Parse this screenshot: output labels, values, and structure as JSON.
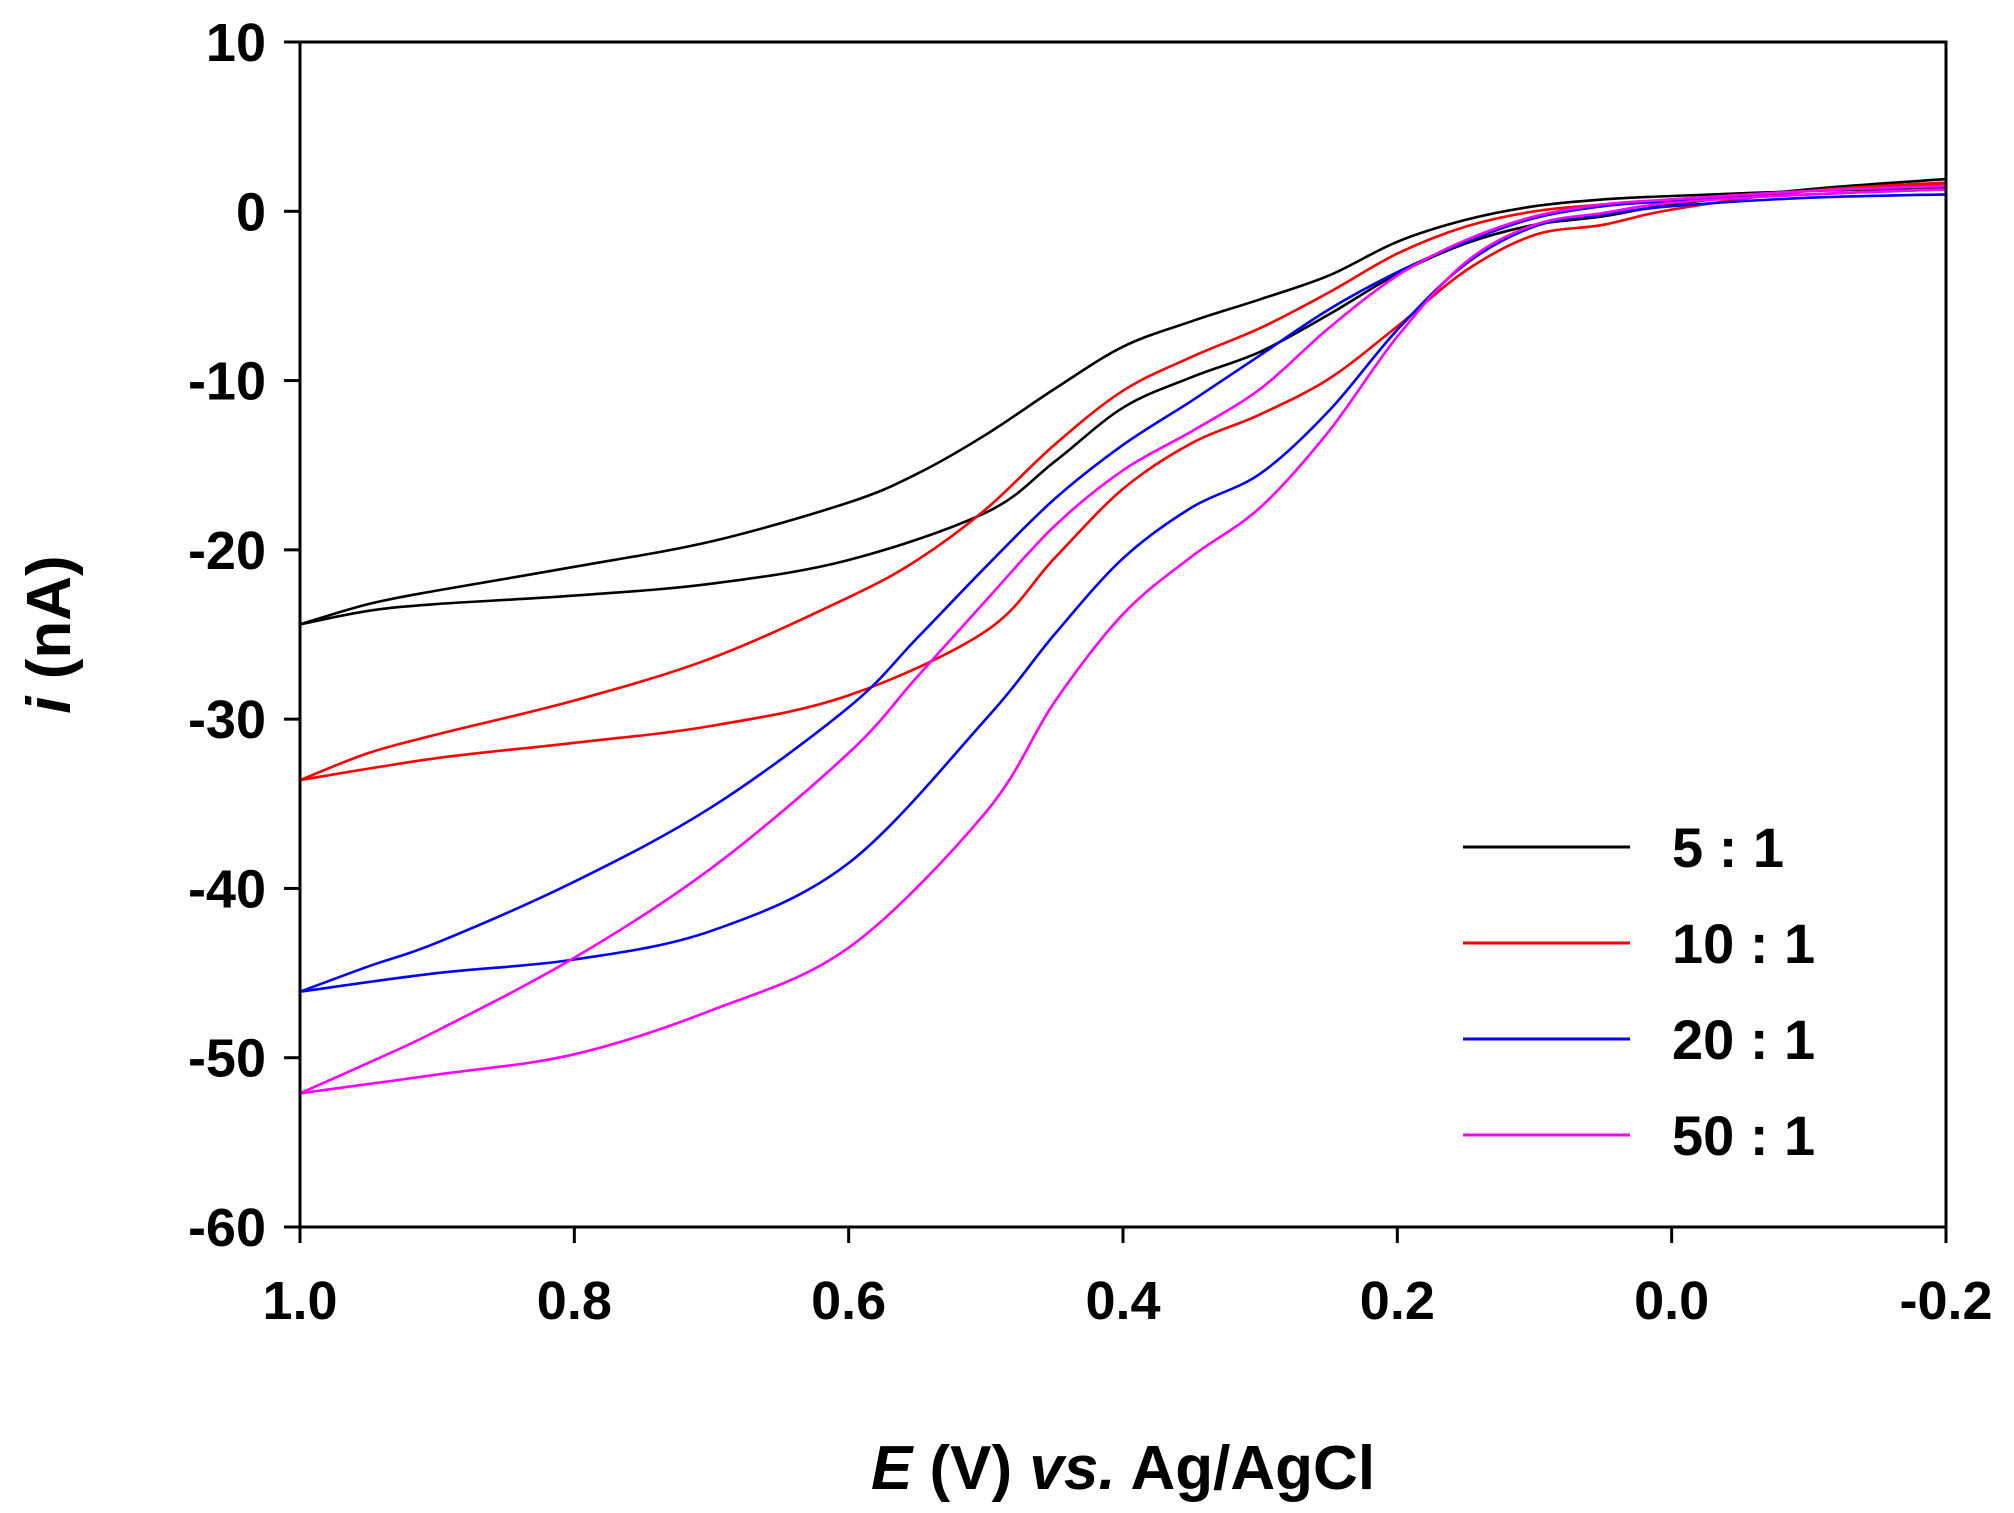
{
  "chart_data": {
    "type": "line",
    "title": "",
    "xlabel": {
      "italic": "E",
      "unit": " (V) ",
      "italic2": "vs.",
      "rest": " Ag/AgCl"
    },
    "ylabel": {
      "italic": "i",
      "rest": " (nA)"
    },
    "xlim": [
      1.0,
      -0.2
    ],
    "ylim": [
      -60,
      10
    ],
    "x_ticks": [
      1.0,
      0.8,
      0.6,
      0.4,
      0.2,
      0.0,
      -0.2
    ],
    "x_tick_labels": [
      "1.0",
      "0.8",
      "0.6",
      "0.4",
      "0.2",
      "0.0",
      "-0.2"
    ],
    "y_ticks": [
      10,
      0,
      -10,
      -20,
      -30,
      -40,
      -50,
      -60
    ],
    "y_tick_labels": [
      "10",
      "0",
      "-10",
      "-20",
      "-30",
      "-40",
      "-50",
      "-60"
    ],
    "legend_position": "lower-right",
    "series": [
      {
        "name": "5 : 1",
        "color": "#000000",
        "forward": [
          [
            1.0,
            -24.4
          ],
          [
            0.95,
            -23.6
          ],
          [
            0.9,
            -23.2
          ],
          [
            0.8,
            -22.7
          ],
          [
            0.7,
            -22.0
          ],
          [
            0.6,
            -20.6
          ],
          [
            0.5,
            -17.8
          ],
          [
            0.45,
            -14.8
          ],
          [
            0.4,
            -11.6
          ],
          [
            0.35,
            -9.8
          ],
          [
            0.3,
            -8.3
          ],
          [
            0.25,
            -6.1
          ],
          [
            0.2,
            -3.7
          ],
          [
            0.15,
            -1.9
          ],
          [
            0.1,
            -0.8
          ],
          [
            0.05,
            -0.3
          ],
          [
            0.0,
            0.4
          ],
          [
            -0.1,
            1.3
          ],
          [
            -0.2,
            1.9
          ]
        ],
        "reverse": [
          [
            -0.2,
            1.4
          ],
          [
            -0.1,
            1.2
          ],
          [
            0.0,
            0.9
          ],
          [
            0.05,
            0.7
          ],
          [
            0.1,
            0.3
          ],
          [
            0.15,
            -0.5
          ],
          [
            0.2,
            -1.8
          ],
          [
            0.25,
            -3.8
          ],
          [
            0.3,
            -5.2
          ],
          [
            0.35,
            -6.5
          ],
          [
            0.4,
            -8.0
          ],
          [
            0.45,
            -10.5
          ],
          [
            0.5,
            -13.2
          ],
          [
            0.55,
            -15.5
          ],
          [
            0.6,
            -17.2
          ],
          [
            0.7,
            -19.5
          ],
          [
            0.8,
            -21.0
          ],
          [
            0.9,
            -22.4
          ],
          [
            0.95,
            -23.2
          ],
          [
            1.0,
            -24.4
          ]
        ]
      },
      {
        "name": "10 : 1",
        "color": "#ff0000",
        "forward": [
          [
            1.0,
            -33.6
          ],
          [
            0.9,
            -32.3
          ],
          [
            0.8,
            -31.4
          ],
          [
            0.7,
            -30.4
          ],
          [
            0.6,
            -28.6
          ],
          [
            0.5,
            -24.8
          ],
          [
            0.45,
            -20.5
          ],
          [
            0.4,
            -16.4
          ],
          [
            0.35,
            -13.7
          ],
          [
            0.3,
            -12.0
          ],
          [
            0.25,
            -9.9
          ],
          [
            0.2,
            -6.8
          ],
          [
            0.15,
            -3.5
          ],
          [
            0.1,
            -1.4
          ],
          [
            0.05,
            -0.8
          ],
          [
            0.0,
            0.1
          ],
          [
            -0.1,
            1.2
          ],
          [
            -0.2,
            1.7
          ]
        ],
        "reverse": [
          [
            -0.2,
            1.6
          ],
          [
            -0.1,
            1.2
          ],
          [
            0.0,
            0.7
          ],
          [
            0.05,
            0.4
          ],
          [
            0.1,
            0.0
          ],
          [
            0.15,
            -0.9
          ],
          [
            0.2,
            -2.5
          ],
          [
            0.25,
            -4.8
          ],
          [
            0.3,
            -6.9
          ],
          [
            0.35,
            -8.6
          ],
          [
            0.4,
            -10.6
          ],
          [
            0.45,
            -13.8
          ],
          [
            0.5,
            -17.6
          ],
          [
            0.55,
            -20.6
          ],
          [
            0.6,
            -22.8
          ],
          [
            0.7,
            -26.4
          ],
          [
            0.8,
            -28.9
          ],
          [
            0.9,
            -30.9
          ],
          [
            0.95,
            -32.0
          ],
          [
            1.0,
            -33.6
          ]
        ]
      },
      {
        "name": "20 : 1",
        "color": "#0000ff",
        "forward": [
          [
            1.0,
            -46.1
          ],
          [
            0.9,
            -45.0
          ],
          [
            0.8,
            -44.2
          ],
          [
            0.7,
            -42.5
          ],
          [
            0.6,
            -38.5
          ],
          [
            0.5,
            -30.0
          ],
          [
            0.45,
            -25.0
          ],
          [
            0.4,
            -20.5
          ],
          [
            0.35,
            -17.5
          ],
          [
            0.3,
            -15.5
          ],
          [
            0.25,
            -11.8
          ],
          [
            0.2,
            -7.0
          ],
          [
            0.15,
            -3.1
          ],
          [
            0.1,
            -0.9
          ],
          [
            0.05,
            -0.2
          ],
          [
            0.0,
            0.3
          ],
          [
            -0.1,
            0.8
          ],
          [
            -0.2,
            1.0
          ]
        ],
        "reverse": [
          [
            -0.2,
            1.3
          ],
          [
            -0.1,
            1.0
          ],
          [
            0.0,
            0.6
          ],
          [
            0.05,
            0.3
          ],
          [
            0.1,
            -0.4
          ],
          [
            0.15,
            -1.8
          ],
          [
            0.2,
            -3.6
          ],
          [
            0.25,
            -5.8
          ],
          [
            0.3,
            -8.5
          ],
          [
            0.35,
            -11.2
          ],
          [
            0.4,
            -13.8
          ],
          [
            0.45,
            -17.0
          ],
          [
            0.5,
            -21.0
          ],
          [
            0.55,
            -25.2
          ],
          [
            0.6,
            -29.3
          ],
          [
            0.7,
            -35.2
          ],
          [
            0.8,
            -39.6
          ],
          [
            0.9,
            -43.2
          ],
          [
            0.95,
            -44.6
          ],
          [
            1.0,
            -46.1
          ]
        ]
      },
      {
        "name": "50 : 1",
        "color": "#ff00ff",
        "forward": [
          [
            1.0,
            -52.1
          ],
          [
            0.9,
            -51.0
          ],
          [
            0.8,
            -49.8
          ],
          [
            0.7,
            -47.2
          ],
          [
            0.6,
            -43.5
          ],
          [
            0.5,
            -35.5
          ],
          [
            0.45,
            -29.0
          ],
          [
            0.4,
            -23.8
          ],
          [
            0.35,
            -20.4
          ],
          [
            0.3,
            -17.5
          ],
          [
            0.25,
            -13.0
          ],
          [
            0.2,
            -7.4
          ],
          [
            0.15,
            -3.0
          ],
          [
            0.1,
            -0.8
          ],
          [
            0.05,
            -0.1
          ],
          [
            0.0,
            0.5
          ],
          [
            -0.1,
            1.0
          ],
          [
            -0.2,
            1.3
          ]
        ],
        "reverse": [
          [
            -0.2,
            1.5
          ],
          [
            -0.1,
            1.2
          ],
          [
            0.0,
            0.7
          ],
          [
            0.05,
            0.4
          ],
          [
            0.1,
            -0.3
          ],
          [
            0.15,
            -1.7
          ],
          [
            0.2,
            -3.8
          ],
          [
            0.25,
            -6.9
          ],
          [
            0.3,
            -10.5
          ],
          [
            0.35,
            -13.0
          ],
          [
            0.4,
            -15.3
          ],
          [
            0.45,
            -18.6
          ],
          [
            0.5,
            -23.0
          ],
          [
            0.55,
            -27.5
          ],
          [
            0.6,
            -32.0
          ],
          [
            0.7,
            -38.8
          ],
          [
            0.8,
            -44.1
          ],
          [
            0.9,
            -48.4
          ],
          [
            0.95,
            -50.3
          ],
          [
            1.0,
            -52.1
          ]
        ]
      }
    ]
  }
}
